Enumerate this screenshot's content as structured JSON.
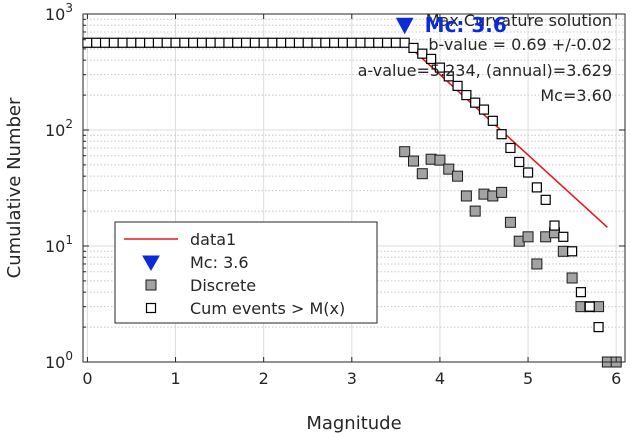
{
  "chart_data": {
    "type": "scatter",
    "xlabel": "Magnitude",
    "ylabel": "Cumulative Number",
    "xlim": [
      -0.05,
      6.1
    ],
    "ylim": [
      1,
      1000
    ],
    "y_scale": "log",
    "x_ticks": [
      {
        "v": 0,
        "label": "0"
      },
      {
        "v": 1,
        "label": "1"
      },
      {
        "v": 2,
        "label": "2"
      },
      {
        "v": 3,
        "label": "3"
      },
      {
        "v": 4,
        "label": "4"
      },
      {
        "v": 5,
        "label": "5"
      },
      {
        "v": 6,
        "label": "6"
      }
    ],
    "y_ticks": [
      {
        "v": 1,
        "base": "10",
        "exp": "0"
      },
      {
        "v": 10,
        "base": "10",
        "exp": "1"
      },
      {
        "v": 100,
        "base": "10",
        "exp": "2"
      },
      {
        "v": 1000,
        "base": "10",
        "exp": "3"
      }
    ],
    "grid": true,
    "annotations": [
      "Max Curvature solution",
      "b-value = 0.69 +/-0.02",
      "a-value=5.234, (annual)=3.629",
      "Mc=3.60"
    ],
    "mc_label": "Mc: 3.6",
    "legend_position": "lower-left",
    "legend": [
      {
        "label": "data1",
        "marker": "line",
        "color": "#e8171f"
      },
      {
        "label": "Mc: 3.6",
        "marker": "triangle",
        "color": "#0a2bd8"
      },
      {
        "label": "Discrete",
        "marker": "square-filled",
        "color": "#a3a3a3"
      },
      {
        "label": "Cum events > M(x)",
        "marker": "square-open",
        "color": "#ffffff"
      }
    ],
    "fit_line": {
      "x": [
        3.6,
        5.9
      ],
      "y": [
        569,
        14.5
      ]
    },
    "mc_marker": {
      "x": 3.6,
      "y": 800
    },
    "discrete": {
      "x": [
        3.6,
        3.7,
        3.8,
        3.9,
        4.0,
        4.1,
        4.2,
        4.3,
        4.4,
        4.5,
        4.6,
        4.7,
        4.8,
        4.9,
        5.0,
        5.1,
        5.2,
        5.3,
        5.4,
        5.5,
        5.6,
        5.7,
        5.8,
        5.9,
        6.0
      ],
      "y": [
        65,
        54,
        42,
        56,
        55,
        46,
        40,
        27,
        20,
        28,
        27,
        29,
        16,
        11,
        12,
        7,
        12,
        13,
        9,
        5.3,
        3,
        3,
        3,
        1,
        1
      ]
    },
    "cumulative": {
      "x": [
        0.0,
        0.1,
        0.2,
        0.3,
        0.4,
        0.5,
        0.6,
        0.7,
        0.8,
        0.9,
        1.0,
        1.1,
        1.2,
        1.3,
        1.4,
        1.5,
        1.6,
        1.7,
        1.8,
        1.9,
        2.0,
        2.1,
        2.2,
        2.3,
        2.4,
        2.5,
        2.6,
        2.7,
        2.8,
        2.9,
        3.0,
        3.1,
        3.2,
        3.3,
        3.4,
        3.5,
        3.6,
        3.7,
        3.8,
        3.9,
        4.0,
        4.1,
        4.2,
        4.3,
        4.4,
        4.5,
        4.6,
        4.7,
        4.8,
        4.9,
        5.0,
        5.1,
        5.2,
        5.3,
        5.4,
        5.5,
        5.6,
        5.7,
        5.8
      ],
      "y": [
        565,
        565,
        565,
        565,
        565,
        565,
        565,
        565,
        565,
        565,
        565,
        565,
        565,
        565,
        565,
        565,
        565,
        565,
        565,
        565,
        565,
        565,
        565,
        565,
        565,
        565,
        565,
        565,
        565,
        565,
        565,
        565,
        565,
        565,
        565,
        565,
        565,
        510,
        455,
        410,
        345,
        290,
        240,
        200,
        172,
        150,
        120,
        92,
        70,
        53,
        43,
        32,
        25,
        15,
        12,
        9,
        4,
        3,
        2
      ]
    }
  }
}
